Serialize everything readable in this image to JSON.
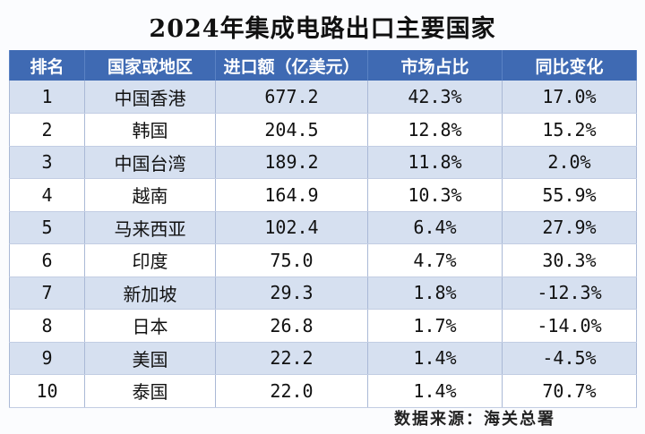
{
  "title": "2024年集成电路出口主要国家",
  "table": {
    "headers": [
      "排名",
      "国家或地区",
      "进口额（亿美元）",
      "市场占比",
      "同比变化"
    ],
    "rows": [
      {
        "rank": "1",
        "country": "中国香港",
        "value": "677.2",
        "share": "42.3%",
        "change": "17.0%"
      },
      {
        "rank": "2",
        "country": "韩国",
        "value": "204.5",
        "share": "12.8%",
        "change": "15.2%"
      },
      {
        "rank": "3",
        "country": "中国台湾",
        "value": "189.2",
        "share": "11.8%",
        "change": "2.0%"
      },
      {
        "rank": "4",
        "country": "越南",
        "value": "164.9",
        "share": "10.3%",
        "change": "55.9%"
      },
      {
        "rank": "5",
        "country": "马来西亚",
        "value": "102.4",
        "share": "6.4%",
        "change": "27.9%"
      },
      {
        "rank": "6",
        "country": "印度",
        "value": "75.0",
        "share": "4.7%",
        "change": "30.3%"
      },
      {
        "rank": "7",
        "country": "新加坡",
        "value": "29.3",
        "share": "1.8%",
        "change": "-12.3%"
      },
      {
        "rank": "8",
        "country": "日本",
        "value": "26.8",
        "share": "1.7%",
        "change": "-14.0%"
      },
      {
        "rank": "9",
        "country": "美国",
        "value": "22.2",
        "share": "1.4%",
        "change": "-4.5%"
      },
      {
        "rank": "10",
        "country": "泰国",
        "value": "22.0",
        "share": "1.4%",
        "change": "70.7%"
      }
    ]
  },
  "source": "数据来源：海关总署",
  "colors": {
    "header_bg": "#3f6ab3",
    "stripe_bg": "#d6e0f0"
  }
}
